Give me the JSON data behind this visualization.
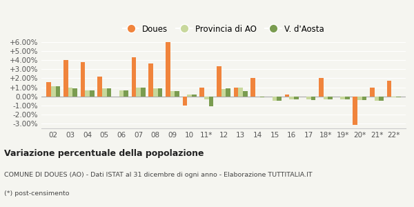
{
  "categories": [
    "02",
    "03",
    "04",
    "05",
    "06",
    "07",
    "08",
    "09",
    "10",
    "11*",
    "12",
    "13",
    "14",
    "15",
    "16",
    "17",
    "18*",
    "19*",
    "20*",
    "21*",
    "22*"
  ],
  "doues": [
    1.6,
    4.0,
    3.8,
    2.2,
    0.0,
    4.3,
    3.6,
    6.0,
    -1.0,
    1.0,
    3.3,
    1.0,
    2.0,
    0.0,
    0.2,
    0.0,
    2.0,
    0.0,
    -3.1,
    1.0,
    1.75
  ],
  "provincia": [
    1.1,
    1.0,
    0.7,
    0.9,
    0.7,
    1.0,
    0.9,
    0.6,
    0.2,
    -0.3,
    0.8,
    1.0,
    0.0,
    -0.5,
    -0.3,
    -0.3,
    -0.3,
    -0.3,
    -0.4,
    -0.5,
    -0.1
  ],
  "vda": [
    1.1,
    0.9,
    0.7,
    0.9,
    0.7,
    1.0,
    0.9,
    0.6,
    0.2,
    -1.1,
    0.9,
    0.6,
    -0.1,
    -0.5,
    -0.3,
    -0.4,
    -0.3,
    -0.3,
    -0.4,
    -0.5,
    -0.1
  ],
  "color_doues": "#f0843c",
  "color_provincia": "#c8d89c",
  "color_vda": "#7a9c50",
  "title_bold": "Variazione percentuale della popolazione",
  "subtitle": "COMUNE DI DOUES (AO) - Dati ISTAT al 31 dicembre di ogni anno - Elaborazione TUTTITALIA.IT",
  "footnote": "(*) post-censimento",
  "ylim": [
    -3.5,
    6.5
  ],
  "yticks": [
    -3.0,
    -2.0,
    -1.0,
    0.0,
    1.0,
    2.0,
    3.0,
    4.0,
    5.0,
    6.0
  ],
  "ytick_labels": [
    "-3.00%",
    "-2.00%",
    "-1.00%",
    "0.00%",
    "+1.00%",
    "+2.00%",
    "+3.00%",
    "+4.00%",
    "+5.00%",
    "+6.00%"
  ],
  "bg_color": "#f5f5f0",
  "legend_labels": [
    "Doues",
    "Provincia di AO",
    "V. d'Aosta"
  ]
}
